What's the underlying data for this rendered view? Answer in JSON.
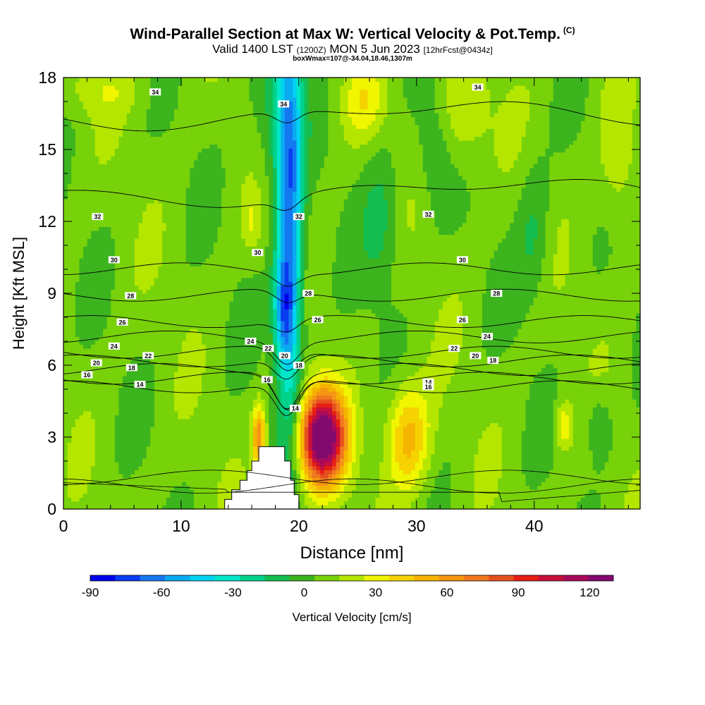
{
  "header": {
    "title": "Wind-Parallel Section at Max W: Vertical Velocity & Pot.Temp.",
    "copyright": "(C)",
    "valid_main": "Valid 1400 LST",
    "valid_utc": "(1200Z)",
    "valid_date": "MON 5 Jun 2023",
    "forecast": "[12hrFcst@0434z]",
    "box_info": "boxWmax=107@-34.04,18.46,1307m"
  },
  "chart_data": {
    "type": "heatmap",
    "xlabel": "Distance [nm]",
    "ylabel": "Height [Kft MSL]",
    "xlim": [
      0,
      49
    ],
    "ylim": [
      0,
      18
    ],
    "x_ticks": [
      0,
      10,
      20,
      30,
      40
    ],
    "y_ticks": [
      0,
      3,
      6,
      9,
      12,
      15,
      18
    ],
    "colorbar": {
      "label": "Vertical Velocity [cm/s]",
      "min": -90,
      "max": 130,
      "step": 10,
      "ticks": [
        -90,
        -60,
        -30,
        0,
        30,
        60,
        90,
        120
      ],
      "colors": [
        "#0000ee",
        "#0a3cf0",
        "#1478f0",
        "#0aaaf0",
        "#00d2f0",
        "#00e6c8",
        "#00d28c",
        "#14be50",
        "#3cb41e",
        "#78d20a",
        "#b4e600",
        "#f0f500",
        "#f5d200",
        "#f5b400",
        "#f59614",
        "#f0781e",
        "#e6501e",
        "#e61e14",
        "#c80f3c",
        "#aa0a5a",
        "#820a6e"
      ]
    },
    "terrain_kft": [
      [
        13.7,
        0.0
      ],
      [
        13.7,
        0.4
      ],
      [
        14.3,
        0.4
      ],
      [
        14.3,
        0.8
      ],
      [
        15.0,
        0.8
      ],
      [
        15.0,
        1.2
      ],
      [
        15.6,
        1.2
      ],
      [
        15.6,
        1.6
      ],
      [
        16.0,
        1.6
      ],
      [
        16.0,
        2.0
      ],
      [
        16.6,
        2.0
      ],
      [
        16.6,
        2.6
      ],
      [
        18.8,
        2.6
      ],
      [
        18.8,
        2.0
      ],
      [
        19.3,
        2.0
      ],
      [
        19.3,
        1.2
      ],
      [
        19.6,
        1.2
      ],
      [
        19.6,
        0.6
      ],
      [
        20.0,
        0.6
      ],
      [
        20.0,
        0.0
      ]
    ],
    "theta_isentropes": [
      {
        "value": 14,
        "labels": [
          [
            6.5,
            5.2
          ],
          [
            31.0,
            5.3
          ],
          [
            19.7,
            4.2
          ]
        ]
      },
      {
        "value": 16,
        "labels": [
          [
            2.0,
            5.6
          ],
          [
            17.3,
            5.4
          ],
          [
            31.0,
            5.1
          ]
        ]
      },
      {
        "value": 18,
        "labels": [
          [
            5.8,
            5.9
          ],
          [
            20.0,
            6.0
          ],
          [
            36.5,
            6.2
          ]
        ]
      },
      {
        "value": 20,
        "labels": [
          [
            2.8,
            6.1
          ],
          [
            18.8,
            6.4
          ],
          [
            35.0,
            6.4
          ]
        ]
      },
      {
        "value": 22,
        "labels": [
          [
            7.2,
            6.4
          ],
          [
            17.4,
            6.7
          ],
          [
            33.2,
            6.7
          ]
        ]
      },
      {
        "value": 24,
        "labels": [
          [
            4.3,
            6.8
          ],
          [
            15.9,
            7.0
          ],
          [
            36.0,
            7.2
          ]
        ]
      },
      {
        "value": 26,
        "labels": [
          [
            5.0,
            7.8
          ],
          [
            21.6,
            7.9
          ],
          [
            33.9,
            7.9
          ]
        ]
      },
      {
        "value": 28,
        "labels": [
          [
            5.7,
            8.9
          ],
          [
            20.8,
            9.0
          ],
          [
            36.8,
            9.0
          ]
        ]
      },
      {
        "value": 30,
        "labels": [
          [
            4.3,
            10.4
          ],
          [
            16.5,
            10.7
          ],
          [
            33.9,
            10.4
          ]
        ]
      },
      {
        "value": 32,
        "labels": [
          [
            2.9,
            12.2
          ],
          [
            20.0,
            12.2
          ],
          [
            31.0,
            12.3
          ]
        ]
      },
      {
        "value": 34,
        "labels": [
          [
            7.8,
            17.4
          ],
          [
            18.7,
            16.9
          ],
          [
            35.2,
            17.6
          ]
        ]
      }
    ]
  }
}
